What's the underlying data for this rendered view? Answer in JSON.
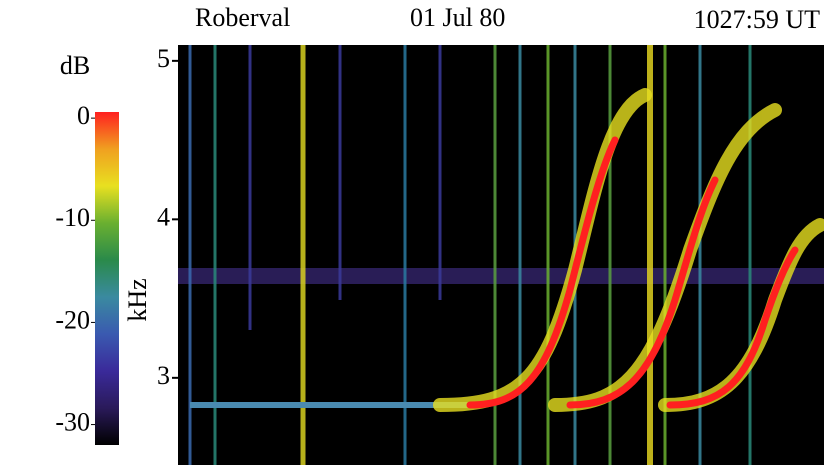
{
  "chart_data": {
    "type": "spectrogram",
    "title_parts": [
      "Roberval",
      "01 Jul 80",
      "1027:59 UT"
    ],
    "ylabel": "kHz",
    "ylim": [
      2.45,
      5.1
    ],
    "yticks": [
      3,
      4,
      5
    ],
    "colorbar": {
      "label": "dB",
      "lim": [
        -32,
        0.6
      ],
      "ticks": [
        0,
        -10,
        -20,
        -30
      ],
      "colors": [
        "#000000",
        "#2a1a5a",
        "#3a2a9a",
        "#3a5ab0",
        "#3a8aa0",
        "#2a8a4a",
        "#6ab030",
        "#e8e020",
        "#f0a020",
        "#ff2020"
      ]
    }
  }
}
